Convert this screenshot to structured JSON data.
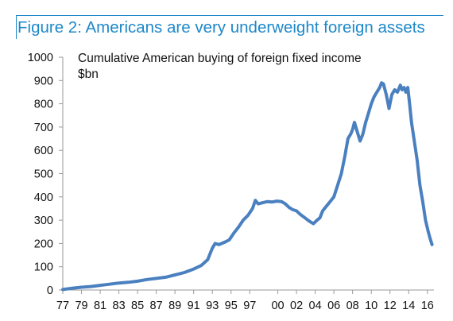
{
  "colors": {
    "accent": "#1e88c9",
    "series": "#4a80c0",
    "axis": "#9a9a9a",
    "text": "#111111"
  },
  "header": {
    "title": "Figure 2: Americans are very underweight foreign assets"
  },
  "chart_data": {
    "type": "line",
    "title": "",
    "subtitle_lines": [
      "Cumulative American buying of foreign fixed income",
      "$bn"
    ],
    "xlabel": "",
    "ylabel": "",
    "xlim": [
      1977,
      2016.7
    ],
    "ylim": [
      0,
      1000
    ],
    "y_ticks": [
      0,
      100,
      200,
      300,
      400,
      500,
      600,
      700,
      800,
      900,
      1000
    ],
    "x_tick_values": [
      1977,
      1979,
      1981,
      1983,
      1985,
      1987,
      1989,
      1991,
      1993,
      1995,
      1997,
      2000,
      2002,
      2004,
      2006,
      2008,
      2010,
      2012,
      2014,
      2016
    ],
    "x_tick_labels": [
      "77",
      "79",
      "81",
      "83",
      "85",
      "87",
      "89",
      "91",
      "93",
      "95",
      "97",
      "00",
      "02",
      "04",
      "06",
      "08",
      "10",
      "12",
      "14",
      "16"
    ],
    "grid": false,
    "legend": "none",
    "series": [
      {
        "x": [
          1977.0,
          1978.0,
          1979.0,
          1980.0,
          1981.0,
          1982.0,
          1983.0,
          1984.0,
          1985.0,
          1986.0,
          1987.0,
          1988.0,
          1989.0,
          1990.0,
          1991.0,
          1991.8,
          1992.5,
          1993.0,
          1993.3,
          1993.7,
          1994.3,
          1994.8,
          1995.3,
          1995.8,
          1996.3,
          1996.8,
          1997.3,
          1997.6,
          1997.9,
          1998.4,
          1998.9,
          1999.4,
          1999.9,
          2000.4,
          2000.8,
          2001.2,
          2001.6,
          2002.0,
          2002.4,
          2002.9,
          2003.4,
          2003.8,
          2004.2,
          2004.5,
          2004.8,
          2005.2,
          2005.6,
          2006.0,
          2006.4,
          2006.8,
          2007.2,
          2007.5,
          2007.8,
          2008.0,
          2008.2,
          2008.5,
          2008.8,
          2009.1,
          2009.4,
          2009.7,
          2010.0,
          2010.3,
          2010.6,
          2010.9,
          2011.1,
          2011.3,
          2011.6,
          2011.9,
          2012.2,
          2012.5,
          2012.8,
          2013.1,
          2013.3,
          2013.5,
          2013.7,
          2013.9,
          2014.1,
          2014.3,
          2014.6,
          2014.9,
          2015.2,
          2015.5,
          2015.8,
          2016.1,
          2016.3,
          2016.5
        ],
        "y": [
          2,
          8,
          12,
          15,
          20,
          25,
          30,
          33,
          38,
          45,
          50,
          55,
          65,
          75,
          90,
          105,
          130,
          180,
          200,
          195,
          205,
          215,
          245,
          270,
          300,
          320,
          350,
          385,
          370,
          375,
          380,
          378,
          382,
          380,
          370,
          355,
          345,
          340,
          325,
          310,
          295,
          285,
          300,
          310,
          340,
          360,
          380,
          400,
          450,
          500,
          580,
          650,
          670,
          690,
          720,
          680,
          640,
          670,
          720,
          760,
          800,
          830,
          850,
          870,
          890,
          885,
          840,
          780,
          840,
          860,
          850,
          880,
          860,
          870,
          850,
          870,
          800,
          720,
          640,
          560,
          450,
          380,
          300,
          250,
          220,
          195
        ]
      }
    ]
  }
}
